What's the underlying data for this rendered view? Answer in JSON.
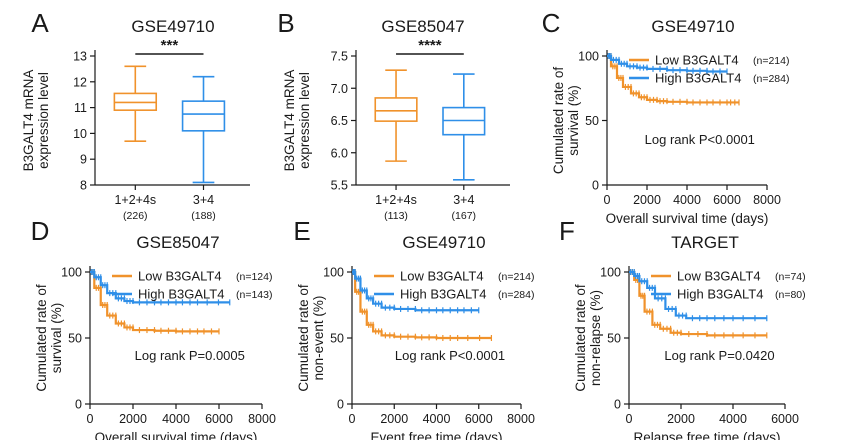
{
  "colors": {
    "orange": "#F0922B",
    "blue": "#2F8FE8",
    "axis": "#1a1a1a"
  },
  "chart_data": [
    {
      "panel": "A",
      "type": "box",
      "title": "GSE49710",
      "ylabel": [
        "B3GALT4 mRNA",
        "expression level"
      ],
      "ylim": [
        8,
        13
      ],
      "yticks": [
        8,
        9,
        10,
        11,
        12,
        13
      ],
      "categories": [
        "1+2+4s",
        "3+4"
      ],
      "counts": [
        "(226)",
        "(188)"
      ],
      "series_colors": [
        "orange",
        "blue"
      ],
      "boxes": [
        {
          "min": 9.7,
          "q1": 10.9,
          "median": 11.2,
          "q3": 11.55,
          "max": 12.6
        },
        {
          "min": 8.1,
          "q1": 10.1,
          "median": 10.75,
          "q3": 11.25,
          "max": 12.2
        }
      ],
      "significance": "***"
    },
    {
      "panel": "B",
      "type": "box",
      "title": "GSE85047",
      "ylabel": [
        "B3GALT4 mRNA",
        "expression level"
      ],
      "ylim": [
        5.5,
        7.5
      ],
      "yticks": [
        "5.5",
        "6.0",
        "6.5",
        "7.0",
        "7.5"
      ],
      "categories": [
        "1+2+4s",
        "3+4"
      ],
      "counts": [
        "(113)",
        "(167)"
      ],
      "series_colors": [
        "orange",
        "blue"
      ],
      "boxes": [
        {
          "min": 5.87,
          "q1": 6.49,
          "median": 6.65,
          "q3": 6.85,
          "max": 7.28
        },
        {
          "min": 5.58,
          "q1": 6.28,
          "median": 6.5,
          "q3": 6.7,
          "max": 7.22
        }
      ],
      "significance": "****"
    },
    {
      "panel": "C",
      "type": "line",
      "title": "GSE49710",
      "ylabel": [
        "Cumulated rate of",
        "survival (%)"
      ],
      "xlabel": "Overall survival time (days)",
      "xlim": [
        0,
        8000
      ],
      "xticks": [
        0,
        2000,
        4000,
        6000,
        8000
      ],
      "ylim": [
        0,
        100
      ],
      "yticks": [
        0,
        50,
        100
      ],
      "series": [
        {
          "name": "Low  B3GALT4",
          "n": "(n=214)",
          "color": "orange",
          "x": [
            0,
            200,
            500,
            800,
            1200,
            1600,
            2000,
            2500,
            3000,
            4000,
            5000,
            6000,
            6600
          ],
          "y": [
            100,
            92,
            83,
            76,
            71,
            68,
            66,
            65,
            64.5,
            64,
            64,
            64,
            64
          ]
        },
        {
          "name": "High B3GALT4",
          "n": "(n=284)",
          "color": "blue",
          "x": [
            0,
            200,
            600,
            1000,
            1500,
            2000,
            3000,
            4000,
            5000,
            6000
          ],
          "y": [
            100,
            97,
            94,
            92,
            91,
            90,
            89,
            88.5,
            88,
            88
          ]
        }
      ],
      "annotation": "Log rank P<0.0001"
    },
    {
      "panel": "D",
      "type": "line",
      "title": "GSE85047",
      "ylabel": [
        "Cumulated rate of",
        "survival (%)"
      ],
      "xlabel": "Overall survival time (days)",
      "xlim": [
        0,
        8000
      ],
      "xticks": [
        0,
        2000,
        4000,
        6000,
        8000
      ],
      "ylim": [
        0,
        100
      ],
      "yticks": [
        0,
        50,
        100
      ],
      "series": [
        {
          "name": "Low  B3GALT4",
          "n": "(n=124)",
          "color": "orange",
          "x": [
            0,
            200,
            500,
            800,
            1200,
            1600,
            2000,
            3000,
            4000,
            5000,
            6000
          ],
          "y": [
            100,
            88,
            75,
            67,
            61,
            58,
            56,
            55.5,
            55,
            55,
            55
          ]
        },
        {
          "name": "High B3GALT4",
          "n": "(n=143)",
          "color": "blue",
          "x": [
            0,
            200,
            500,
            800,
            1200,
            1600,
            2000,
            3000,
            4000,
            5000,
            6500
          ],
          "y": [
            100,
            96,
            90,
            84,
            80,
            78,
            77,
            77,
            77,
            77,
            77
          ]
        }
      ],
      "annotation": "Log rank P=0.0005"
    },
    {
      "panel": "E",
      "type": "line",
      "title": "GSE49710",
      "ylabel": [
        "Cumulated rate of",
        "non-event (%)"
      ],
      "xlabel": "Event free time (days)",
      "xlim": [
        0,
        8000
      ],
      "xticks": [
        0,
        2000,
        4000,
        6000,
        8000
      ],
      "ylim": [
        0,
        100
      ],
      "yticks": [
        0,
        50,
        100
      ],
      "series": [
        {
          "name": "Low  B3GALT4",
          "n": "(n=214)",
          "color": "orange",
          "x": [
            0,
            150,
            400,
            700,
            1000,
            1400,
            2000,
            3000,
            4000,
            5000,
            6600
          ],
          "y": [
            100,
            85,
            70,
            60,
            55,
            52,
            51,
            50.5,
            50,
            50,
            50
          ]
        },
        {
          "name": "High B3GALT4",
          "n": "(n=284)",
          "color": "blue",
          "x": [
            0,
            150,
            400,
            700,
            1000,
            1400,
            2000,
            3000,
            4000,
            5000,
            6000
          ],
          "y": [
            100,
            95,
            86,
            80,
            76,
            73,
            72,
            71,
            71,
            71,
            71
          ]
        }
      ],
      "annotation": "Log rank P<0.0001"
    },
    {
      "panel": "F",
      "type": "line",
      "title": "TARGET",
      "ylabel": [
        "Cumulated rate of",
        "non-relapse (%)"
      ],
      "xlabel": "Relapse free time (days)",
      "xlim": [
        0,
        6000
      ],
      "xticks": [
        0,
        2000,
        4000,
        6000
      ],
      "ylim": [
        0,
        100
      ],
      "yticks": [
        0,
        50,
        100
      ],
      "series": [
        {
          "name": "Low  B3GALT4",
          "n": "(n=74)",
          "color": "orange",
          "x": [
            0,
            200,
            400,
            600,
            900,
            1200,
            1600,
            2000,
            3000,
            4000,
            5300
          ],
          "y": [
            100,
            94,
            82,
            70,
            60,
            57,
            54,
            53,
            52,
            52,
            52
          ]
        },
        {
          "name": "High B3GALT4",
          "n": "(n=80)",
          "color": "blue",
          "x": [
            0,
            200,
            400,
            700,
            1000,
            1400,
            1800,
            2200,
            3000,
            4000,
            5300
          ],
          "y": [
            100,
            97,
            93,
            88,
            80,
            72,
            67,
            65,
            65,
            65,
            65
          ]
        }
      ],
      "annotation": "Log rank P=0.0420"
    }
  ]
}
